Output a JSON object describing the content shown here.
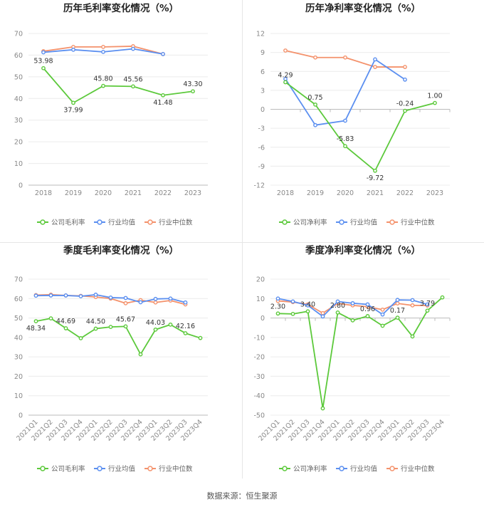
{
  "source_label": "数据来源：恒生聚源",
  "colors": {
    "company": "#5cc93b",
    "avg": "#5b8ff0",
    "median": "#f4926c"
  },
  "chart_data": [
    {
      "type": "line",
      "title": "历年毛利率变化情况（%）",
      "categories": [
        "2018",
        "2019",
        "2020",
        "2021",
        "2022",
        "2023"
      ],
      "ylim": [
        0,
        70
      ],
      "yticks": [
        "0",
        "10",
        "20",
        "30",
        "40",
        "50",
        "60",
        "70"
      ],
      "series": [
        {
          "name": "公司毛利率",
          "values": [
            53.98,
            37.99,
            45.8,
            45.56,
            41.48,
            43.3
          ]
        },
        {
          "name": "行业均值",
          "values": [
            61.3,
            62.5,
            61.5,
            62.9,
            60.5,
            null
          ]
        },
        {
          "name": "行业中位数",
          "values": [
            61.8,
            63.8,
            63.8,
            64.1,
            60.5,
            null
          ]
        }
      ],
      "data_labels": [
        "53.98",
        "37.99",
        "45.80",
        "45.56",
        "41.48",
        "43.30"
      ]
    },
    {
      "type": "line",
      "title": "历年净利率变化情况（%）",
      "categories": [
        "2018",
        "2019",
        "2020",
        "2021",
        "2022",
        "2023"
      ],
      "ylim": [
        -12,
        12
      ],
      "yticks": [
        "-12",
        "-9",
        "-6",
        "-3",
        "0",
        "3",
        "6",
        "9",
        "12"
      ],
      "series": [
        {
          "name": "公司净利率",
          "values": [
            4.29,
            0.75,
            -5.83,
            -9.72,
            -0.24,
            1.0
          ]
        },
        {
          "name": "行业均值",
          "values": [
            4.8,
            -2.5,
            -1.8,
            7.9,
            4.7,
            null
          ]
        },
        {
          "name": "行业中位数",
          "values": [
            9.3,
            8.2,
            8.2,
            6.7,
            6.7,
            null
          ]
        }
      ],
      "data_labels": [
        "4.29",
        "0.75",
        "-5.83",
        "-9.72",
        "-0.24",
        "1.00"
      ]
    },
    {
      "type": "line",
      "title": "季度毛利率变化情况（%）",
      "categories": [
        "2021Q1",
        "2021Q2",
        "2021Q3",
        "2021Q4",
        "2022Q1",
        "2022Q2",
        "2022Q3",
        "2022Q4",
        "2023Q1",
        "2023Q2",
        "2023Q3",
        "2023Q4"
      ],
      "ylim": [
        0,
        70
      ],
      "yticks": [
        "0",
        "10",
        "20",
        "30",
        "40",
        "50",
        "60",
        "70"
      ],
      "series": [
        {
          "name": "公司毛利率",
          "values": [
            48.34,
            49.8,
            44.69,
            39.6,
            44.5,
            45.4,
            45.67,
            31.3,
            44.03,
            46.6,
            42.16,
            39.7
          ]
        },
        {
          "name": "行业均值",
          "values": [
            61.5,
            61.6,
            61.6,
            61.2,
            62.0,
            60.5,
            60.3,
            58.1,
            59.8,
            60.0,
            58.0,
            null
          ]
        },
        {
          "name": "行业中位数",
          "values": [
            61.8,
            62.0,
            61.6,
            61.4,
            60.8,
            60.0,
            57.6,
            59.2,
            58.0,
            59.0,
            57.0,
            null
          ]
        }
      ],
      "data_labels": [
        "48.34",
        "",
        "44.69",
        "",
        "44.50",
        "",
        "45.67",
        "",
        "44.03",
        "",
        "42.16",
        ""
      ]
    },
    {
      "type": "line",
      "title": "季度净利率变化情况（%）",
      "categories": [
        "2021Q1",
        "2021Q2",
        "2021Q3",
        "2021Q4",
        "2022Q1",
        "2022Q2",
        "2022Q3",
        "2022Q4",
        "2023Q1",
        "2023Q2",
        "2023Q3",
        "2023Q4"
      ],
      "ylim": [
        -50,
        20
      ],
      "yticks": [
        "-50",
        "-40",
        "-30",
        "-20",
        "-10",
        "0",
        "10",
        "20"
      ],
      "series": [
        {
          "name": "公司净利率",
          "values": [
            2.3,
            2.1,
            3.4,
            -46.5,
            2.8,
            -1.2,
            0.96,
            -4.0,
            0.17,
            -9.5,
            3.79,
            10.6
          ]
        },
        {
          "name": "行业均值",
          "values": [
            10.0,
            8.5,
            6.5,
            0.8,
            8.5,
            7.6,
            7.0,
            1.8,
            9.3,
            9.2,
            7.0,
            null
          ]
        },
        {
          "name": "行业中位数",
          "values": [
            8.8,
            8.2,
            7.0,
            2.5,
            7.5,
            6.5,
            5.8,
            4.3,
            7.5,
            6.5,
            6.4,
            null
          ]
        }
      ],
      "data_labels": [
        "2.30",
        "",
        "3.40",
        "",
        "2.80",
        "",
        "0.96",
        "",
        "0.17",
        "",
        "3.79",
        ""
      ]
    }
  ]
}
